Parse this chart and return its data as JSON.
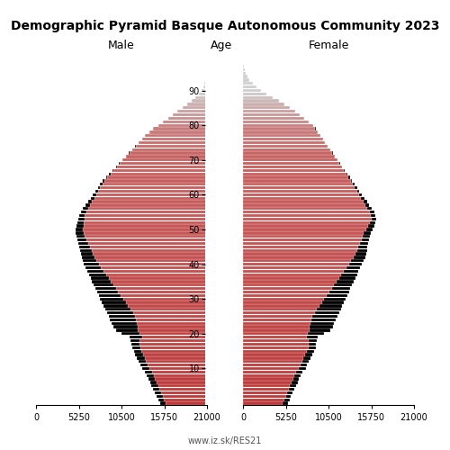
{
  "title": "Demographic Pyramid Basque Autonomous Community 2023",
  "label_male": "Male",
  "label_female": "Female",
  "label_age": "Age",
  "source": "www.iz.sk/RES21",
  "xlim": 21000,
  "xticks": [
    0,
    5250,
    10500,
    15750,
    21000
  ],
  "background_color": "#ffffff",
  "ages": [
    0,
    1,
    2,
    3,
    4,
    5,
    6,
    7,
    8,
    9,
    10,
    11,
    12,
    13,
    14,
    15,
    16,
    17,
    18,
    19,
    20,
    21,
    22,
    23,
    24,
    25,
    26,
    27,
    28,
    29,
    30,
    31,
    32,
    33,
    34,
    35,
    36,
    37,
    38,
    39,
    40,
    41,
    42,
    43,
    44,
    45,
    46,
    47,
    48,
    49,
    50,
    51,
    52,
    53,
    54,
    55,
    56,
    57,
    58,
    59,
    60,
    61,
    62,
    63,
    64,
    65,
    66,
    67,
    68,
    69,
    70,
    71,
    72,
    73,
    74,
    75,
    76,
    77,
    78,
    79,
    80,
    81,
    82,
    83,
    84,
    85,
    86,
    87,
    88,
    89,
    90,
    91,
    92,
    93,
    94,
    95,
    96,
    97,
    98,
    99,
    100
  ],
  "male_total": [
    5800,
    6000,
    6200,
    6400,
    6600,
    6800,
    7000,
    7200,
    7400,
    7600,
    8000,
    8200,
    8400,
    8600,
    8800,
    9000,
    9200,
    9300,
    9400,
    9500,
    10500,
    11200,
    11500,
    11700,
    11900,
    12100,
    12300,
    12500,
    12700,
    12900,
    13100,
    13300,
    13500,
    13700,
    13900,
    14100,
    14300,
    14500,
    14700,
    14900,
    15100,
    15300,
    15400,
    15500,
    15600,
    15700,
    15800,
    15900,
    16000,
    16100,
    16100,
    16000,
    15900,
    15800,
    15700,
    15500,
    15200,
    14900,
    14600,
    14300,
    14000,
    13700,
    13400,
    13100,
    12800,
    12400,
    12000,
    11600,
    11200,
    10800,
    10400,
    10000,
    9600,
    9200,
    8800,
    8400,
    8000,
    7600,
    7100,
    6600,
    6000,
    5400,
    4800,
    4200,
    3600,
    3000,
    2400,
    1900,
    1400,
    1000,
    700,
    470,
    310,
    200,
    120,
    70,
    38,
    18,
    8,
    3,
    1
  ],
  "female_total": [
    5500,
    5700,
    5900,
    6100,
    6300,
    6500,
    6700,
    6900,
    7100,
    7300,
    7700,
    7900,
    8100,
    8300,
    8500,
    8700,
    8900,
    9000,
    9100,
    9200,
    10000,
    10700,
    11000,
    11200,
    11400,
    11600,
    11800,
    12000,
    12200,
    12400,
    12600,
    12800,
    13000,
    13200,
    13400,
    13600,
    13800,
    14000,
    14200,
    14400,
    14600,
    14800,
    15000,
    15100,
    15200,
    15300,
    15400,
    15500,
    15600,
    15700,
    15900,
    16100,
    16300,
    16400,
    16300,
    16100,
    15800,
    15500,
    15200,
    14900,
    14600,
    14300,
    14000,
    13700,
    13400,
    13100,
    12800,
    12500,
    12200,
    11900,
    11600,
    11300,
    11000,
    10700,
    10400,
    10100,
    9800,
    9500,
    9200,
    8900,
    8600,
    8100,
    7500,
    7000,
    6400,
    5800,
    5100,
    4400,
    3700,
    2900,
    2200,
    1700,
    1200,
    820,
    540,
    330,
    185,
    95,
    42,
    15,
    4
  ],
  "male_foreign": [
    700,
    720,
    740,
    760,
    780,
    800,
    820,
    840,
    860,
    880,
    900,
    920,
    930,
    940,
    950,
    960,
    970,
    980,
    1100,
    1500,
    2200,
    2700,
    3000,
    3100,
    3200,
    3300,
    3200,
    3100,
    3000,
    2900,
    2800,
    2700,
    2600,
    2500,
    2400,
    2300,
    2200,
    2100,
    2000,
    1900,
    1800,
    1700,
    1600,
    1500,
    1400,
    1300,
    1200,
    1100,
    1000,
    950,
    900,
    850,
    800,
    750,
    700,
    650,
    600,
    550,
    500,
    450,
    400,
    350,
    300,
    260,
    220,
    180,
    150,
    120,
    100,
    80,
    60,
    50,
    40,
    30,
    25,
    20,
    15,
    12,
    9,
    7,
    5,
    4,
    3,
    2,
    2,
    1,
    1,
    0,
    0,
    0,
    0,
    0,
    0,
    0,
    0,
    0,
    0,
    0,
    0,
    0,
    0
  ],
  "female_foreign": [
    600,
    620,
    640,
    660,
    680,
    700,
    720,
    740,
    760,
    780,
    800,
    820,
    830,
    840,
    850,
    860,
    870,
    880,
    1000,
    1300,
    2000,
    2500,
    2800,
    2900,
    3000,
    3100,
    3000,
    2900,
    2800,
    2700,
    2600,
    2500,
    2400,
    2300,
    2200,
    2100,
    2000,
    1900,
    1800,
    1700,
    1600,
    1500,
    1400,
    1300,
    1200,
    1100,
    1000,
    950,
    900,
    850,
    800,
    750,
    700,
    650,
    600,
    550,
    500,
    450,
    400,
    380,
    350,
    300,
    260,
    220,
    185,
    150,
    120,
    100,
    80,
    65,
    50,
    40,
    32,
    26,
    20,
    16,
    13,
    10,
    8,
    6,
    5,
    4,
    3,
    2,
    2,
    1,
    1,
    0,
    0,
    0,
    0,
    0,
    0,
    0,
    0,
    0,
    0,
    0,
    0,
    0,
    0
  ]
}
